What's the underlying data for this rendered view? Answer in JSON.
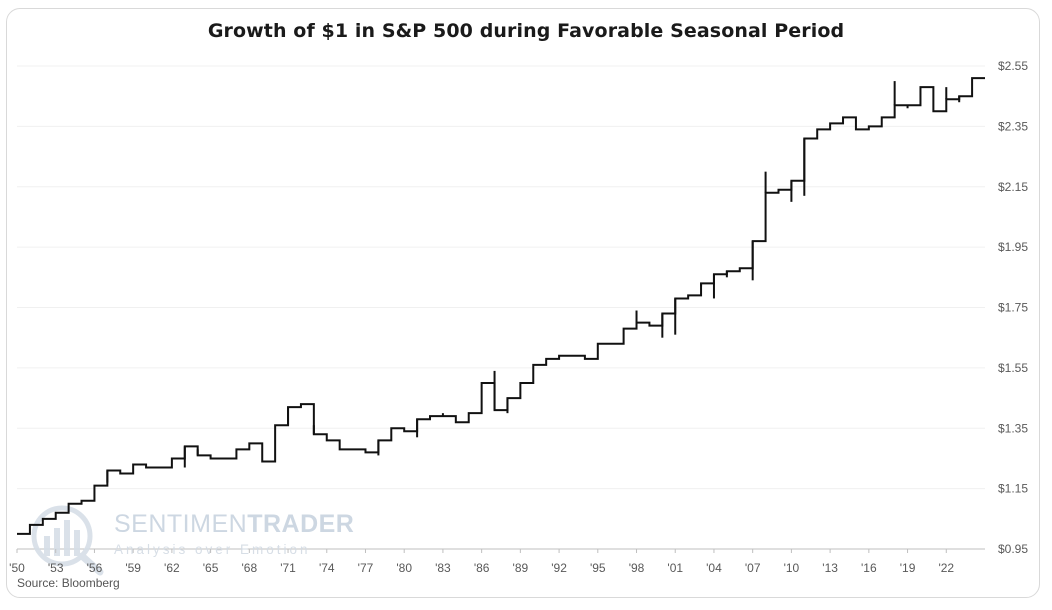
{
  "chart_data": {
    "type": "line",
    "title": "Growth of $1 in S&P 500 during Favorable Seasonal Period",
    "source": "Source: Bloomberg",
    "xlabel": "",
    "ylabel": "",
    "x_ticks": [
      "'50",
      "'53",
      "'56",
      "'59",
      "'62",
      "'65",
      "'68",
      "'71",
      "'74",
      "'77",
      "'80",
      "'83",
      "'86",
      "'89",
      "'92",
      "'95",
      "'98",
      "'01",
      "'04",
      "'07",
      "'10",
      "'13",
      "'16",
      "'19",
      "'22"
    ],
    "y_ticks": [
      "$0.95",
      "$1.15",
      "$1.35",
      "$1.55",
      "$1.75",
      "$1.95",
      "$2.15",
      "$2.35",
      "$2.55"
    ],
    "xlim": [
      1950,
      2025
    ],
    "ylim": [
      0.95,
      2.55
    ],
    "grid": true,
    "legend": "none",
    "style": "step",
    "series": [
      {
        "x": [
          1950,
          1951,
          1952,
          1953,
          1954,
          1955,
          1956,
          1957,
          1958,
          1959,
          1960,
          1961,
          1962,
          1963,
          1964,
          1965,
          1966,
          1967,
          1968,
          1969,
          1970,
          1971,
          1972,
          1973,
          1974,
          1975,
          1976,
          1977,
          1978,
          1979,
          1980,
          1981,
          1982,
          1983,
          1984,
          1985,
          1986,
          1987,
          1988,
          1989,
          1990,
          1991,
          1992,
          1993,
          1994,
          1995,
          1996,
          1997,
          1998,
          1999,
          2000,
          2001,
          2002,
          2003,
          2004,
          2005,
          2006,
          2007,
          2008,
          2009,
          2010,
          2011,
          2012,
          2013,
          2014,
          2015,
          2016,
          2017,
          2018,
          2019,
          2020,
          2021,
          2022,
          2023,
          2024
        ],
        "y": [
          1.0,
          1.03,
          1.05,
          1.07,
          1.1,
          1.11,
          1.16,
          1.21,
          1.2,
          1.23,
          1.22,
          1.22,
          1.25,
          1.29,
          1.26,
          1.25,
          1.25,
          1.28,
          1.3,
          1.24,
          1.36,
          1.42,
          1.43,
          1.33,
          1.31,
          1.28,
          1.28,
          1.27,
          1.31,
          1.35,
          1.34,
          1.38,
          1.39,
          1.39,
          1.37,
          1.4,
          1.5,
          1.41,
          1.45,
          1.5,
          1.56,
          1.58,
          1.59,
          1.59,
          1.58,
          1.63,
          1.63,
          1.68,
          1.7,
          1.69,
          1.73,
          1.78,
          1.79,
          1.83,
          1.86,
          1.87,
          1.88,
          1.97,
          2.13,
          2.14,
          2.17,
          2.31,
          2.34,
          2.36,
          2.38,
          2.34,
          2.35,
          2.38,
          2.42,
          2.42,
          2.48,
          2.4,
          2.44,
          2.45,
          2.51
        ]
      }
    ],
    "spikes": [
      {
        "x": 1957,
        "y": 1.17
      },
      {
        "x": 1963,
        "y": 1.22
      },
      {
        "x": 1964,
        "y": 1.28
      },
      {
        "x": 1971,
        "y": 1.36
      },
      {
        "x": 1973,
        "y": 1.36
      },
      {
        "x": 1978,
        "y": 1.26
      },
      {
        "x": 1981,
        "y": 1.32
      },
      {
        "x": 1983,
        "y": 1.4
      },
      {
        "x": 1987,
        "y": 1.54
      },
      {
        "x": 1988,
        "y": 1.4
      },
      {
        "x": 1998,
        "y": 1.74
      },
      {
        "x": 2000,
        "y": 1.65
      },
      {
        "x": 2001,
        "y": 1.66
      },
      {
        "x": 2003,
        "y": 1.82
      },
      {
        "x": 2004,
        "y": 1.78
      },
      {
        "x": 2005,
        "y": 1.85
      },
      {
        "x": 2007,
        "y": 1.84
      },
      {
        "x": 2008,
        "y": 2.2
      },
      {
        "x": 2010,
        "y": 2.1
      },
      {
        "x": 2011,
        "y": 2.12
      },
      {
        "x": 2018,
        "y": 2.5
      },
      {
        "x": 2019,
        "y": 2.41
      },
      {
        "x": 2022,
        "y": 2.48
      },
      {
        "x": 2023,
        "y": 2.43
      }
    ],
    "line_color": "#111111"
  },
  "watermark": {
    "name_light": "SENTIMEN",
    "name_bold": "TRADER",
    "tagline": "Analysis over Emotion"
  }
}
